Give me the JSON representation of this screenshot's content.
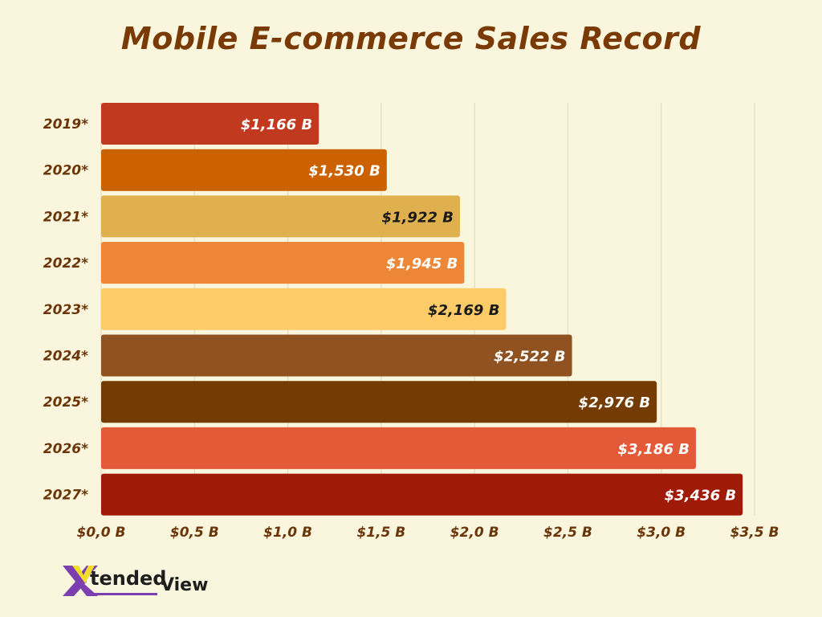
{
  "chart_data": {
    "type": "bar",
    "orientation": "horizontal",
    "title": "Mobile E-commerce Sales Record",
    "categories": [
      "2019*",
      "2020*",
      "2021*",
      "2022*",
      "2023*",
      "2024*",
      "2025*",
      "2026*",
      "2027*"
    ],
    "values": [
      1.166,
      1.53,
      1.922,
      1.945,
      2.169,
      2.522,
      2.976,
      3.186,
      3.436
    ],
    "data_labels": [
      "$1,166 B",
      "$1,530 B",
      "$1,922 B",
      "$1,945 B",
      "$2,169 B",
      "$2,522 B",
      "$2,976 B",
      "$3,186 B",
      "$3,436 B"
    ],
    "colors": [
      "#c13a20",
      "#cc6100",
      "#e0b04e",
      "#ee8638",
      "#fdcb68",
      "#8f5220",
      "#743b02",
      "#e25a38",
      "#a01b07"
    ],
    "label_colors": [
      "#ffffff",
      "#ffffff",
      "#1a1a1a",
      "#ffffff",
      "#1a1a1a",
      "#ffffff",
      "#ffffff",
      "#ffffff",
      "#ffffff"
    ],
    "xlim": [
      0,
      3.5
    ],
    "xticks": [
      0,
      0.5,
      1.0,
      1.5,
      2.0,
      2.5,
      3.0,
      3.5
    ],
    "xtick_labels": [
      "$0,0 B",
      "$0,5 B",
      "$1,0 B",
      "$1,5 B",
      "$2,0 B",
      "$2,5 B",
      "$3,0 B",
      "$3,5 B"
    ],
    "xlabel": "",
    "ylabel": "",
    "grid": true,
    "text_color": "#6b3508"
  },
  "logo": {
    "text_x": "X",
    "text_main": "tended",
    "text_view": "View"
  }
}
